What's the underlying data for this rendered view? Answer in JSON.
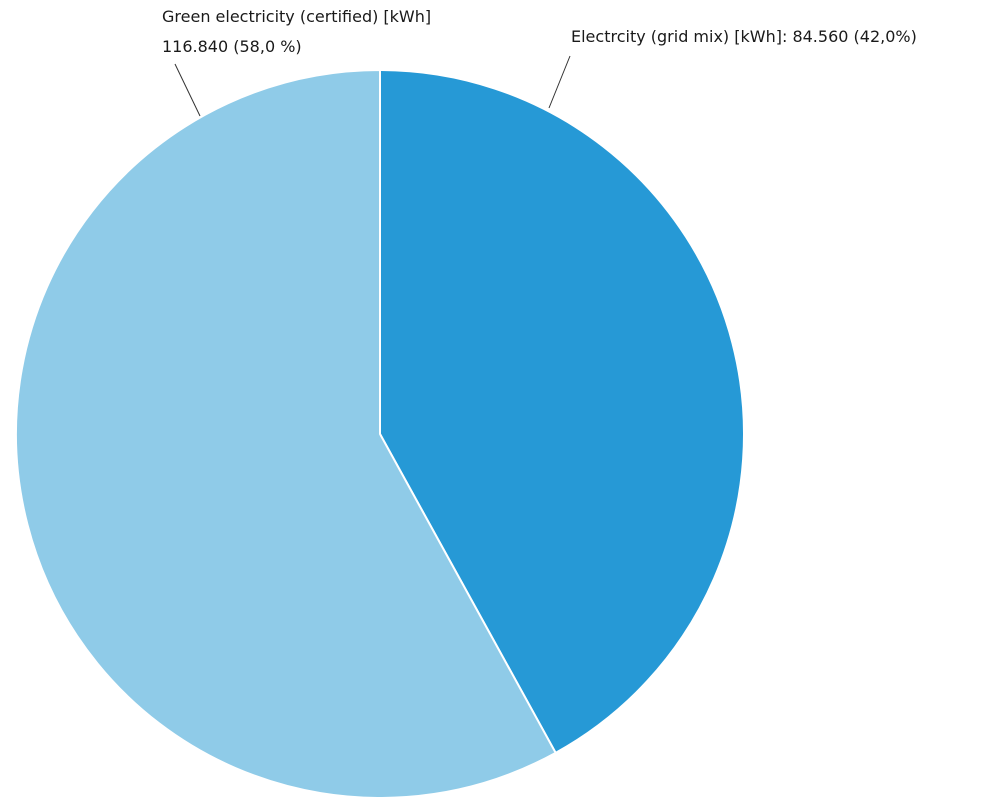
{
  "chart_data": {
    "type": "pie",
    "title": "",
    "slices": [
      {
        "label_line1": "Electrcity (grid mix) [kWh]: 84.560 (42,0%)",
        "label_line2": "",
        "value": 84560,
        "percent": 42.0,
        "color": "#2699D6"
      },
      {
        "label_line1": "Green electricity (certified) [kWh]",
        "label_line2": "116.840 (58,0 %)",
        "value": 116840,
        "percent": 58.0,
        "color": "#8FCBE8"
      }
    ],
    "start_angle": "12 o'clock",
    "direction": "clockwise",
    "separator_color": "#ffffff",
    "legend": "none"
  }
}
